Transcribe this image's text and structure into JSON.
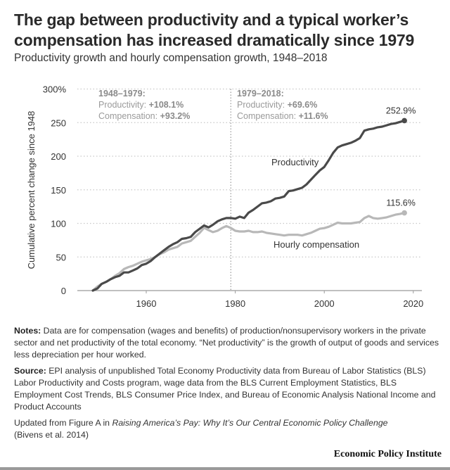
{
  "header": {
    "title": "The gap between productivity and a typical worker’s compensation has increased dramatically since 1979",
    "subtitle": "Productivity growth and hourly compensation growth, 1948–2018"
  },
  "chart_data": {
    "type": "line",
    "title": "The gap between productivity and a typical worker’s compensation has increased dramatically since 1979",
    "subtitle": "Productivity growth and hourly compensation growth, 1948–2018",
    "xlabel": "",
    "ylabel": "Cumulative percent change since 1948",
    "xlim": [
      1945,
      2022
    ],
    "ylim": [
      0,
      300
    ],
    "xticks": [
      1960,
      1980,
      2000,
      2020
    ],
    "yticks": [
      0,
      50,
      100,
      150,
      200,
      250,
      300
    ],
    "ytick_labels": [
      "0",
      "50",
      "100",
      "150",
      "200",
      "250",
      "300%"
    ],
    "grid": "horizontal-dotted",
    "divider_year": 1979,
    "series": [
      {
        "name": "Productivity",
        "color": "#4a4a4a",
        "end_label": "252.9%",
        "x": [
          1948,
          1949,
          1950,
          1951,
          1952,
          1953,
          1954,
          1955,
          1956,
          1957,
          1958,
          1959,
          1960,
          1961,
          1962,
          1963,
          1964,
          1965,
          1966,
          1967,
          1968,
          1969,
          1970,
          1971,
          1972,
          1973,
          1974,
          1975,
          1976,
          1977,
          1978,
          1979,
          1980,
          1981,
          1982,
          1983,
          1984,
          1985,
          1986,
          1987,
          1988,
          1989,
          1990,
          1991,
          1992,
          1993,
          1994,
          1995,
          1996,
          1997,
          1998,
          1999,
          2000,
          2001,
          2002,
          2003,
          2004,
          2005,
          2006,
          2007,
          2008,
          2009,
          2010,
          2011,
          2012,
          2013,
          2014,
          2015,
          2016,
          2017,
          2018
        ],
        "values": [
          0,
          3,
          10,
          13,
          17,
          20,
          22,
          27,
          27,
          30,
          33,
          38,
          40,
          44,
          50,
          55,
          60,
          65,
          69,
          72,
          77,
          78,
          80,
          87,
          92,
          97,
          94,
          98,
          103,
          106,
          108,
          108.1,
          107,
          110,
          108,
          116,
          120,
          125,
          130,
          131,
          133,
          137,
          138,
          140,
          148,
          149,
          151,
          153,
          158,
          165,
          172,
          179,
          184,
          194,
          205,
          213,
          216,
          218,
          220,
          223,
          227,
          238,
          240,
          241,
          243,
          244,
          246,
          248,
          249,
          251,
          252.9
        ]
      },
      {
        "name": "Hourly compensation",
        "color": "#b8b8b8",
        "end_label": "115.6%",
        "x": [
          1948,
          1949,
          1950,
          1951,
          1952,
          1953,
          1954,
          1955,
          1956,
          1957,
          1958,
          1959,
          1960,
          1961,
          1962,
          1963,
          1964,
          1965,
          1966,
          1967,
          1968,
          1969,
          1970,
          1971,
          1972,
          1973,
          1974,
          1975,
          1976,
          1977,
          1978,
          1979,
          1980,
          1981,
          1982,
          1983,
          1984,
          1985,
          1986,
          1987,
          1988,
          1989,
          1990,
          1991,
          1992,
          1993,
          1994,
          1995,
          1996,
          1997,
          1998,
          1999,
          2000,
          2001,
          2002,
          2003,
          2004,
          2005,
          2006,
          2007,
          2008,
          2009,
          2010,
          2011,
          2012,
          2013,
          2014,
          2015,
          2016,
          2017,
          2018
        ],
        "values": [
          0,
          6,
          10,
          13,
          17,
          22,
          26,
          32,
          35,
          37,
          40,
          43,
          45,
          47,
          50,
          54,
          57,
          61,
          63,
          65,
          70,
          72,
          74,
          80,
          86,
          93.5,
          90,
          87,
          89,
          93,
          96,
          93.2,
          89,
          88,
          88,
          89,
          87,
          87,
          88,
          86,
          85,
          84,
          83,
          82,
          83,
          83,
          83,
          82,
          84,
          86,
          89,
          92,
          93,
          95,
          98,
          101,
          100,
          100,
          100,
          101,
          102,
          108,
          111,
          108,
          107,
          108,
          109,
          111,
          113,
          114,
          115.6
        ]
      }
    ],
    "annotations": [
      {
        "period": "1948–1979:",
        "productivity_label": "Productivity:",
        "productivity_value": "+108.1%",
        "compensation_label": "Compensation:",
        "compensation_value": "+93.2%"
      },
      {
        "period": "1979–2018:",
        "productivity_label": "Productivity:",
        "productivity_value": "+69.6%",
        "compensation_label": "Compensation:",
        "compensation_value": "+11.6%"
      }
    ],
    "series_labels": {
      "productivity": "Productivity",
      "compensation": "Hourly compensation"
    }
  },
  "notes": {
    "notes_label": "Notes:",
    "notes_text": " Data are for compensation (wages and benefits) of production/nonsupervisory workers in the private sector and net productivity of the total economy. “Net productivity” is the growth of output of goods and services less depreciation per hour worked.",
    "source_label": "Source:",
    "source_text": " EPI analysis of unpublished Total Economy Productivity data from Bureau of Labor Statistics (BLS) Labor Productivity and Costs program, wage data from the BLS Current Employment Statistics, BLS Employment Cost Trends, BLS Consumer Price Index, and Bureau of Economic Analysis National Income and Product Accounts",
    "updated_prefix": "Updated from Figure A in ",
    "updated_title": "Raising America’s Pay: Why It’s Our Central Economic Policy Challenge",
    "updated_suffix": "(Bivens et al. 2014)"
  },
  "footer": {
    "brand": "Economic Policy Institute"
  }
}
